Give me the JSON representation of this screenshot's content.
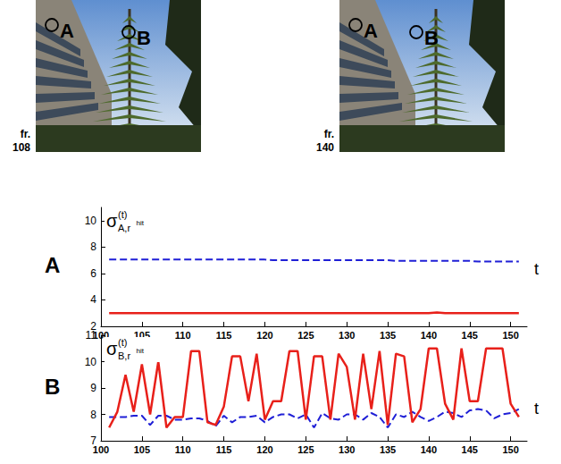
{
  "photos": [
    {
      "markers": [
        "A",
        "B"
      ],
      "caption": [
        "fr.",
        "108"
      ]
    },
    {
      "markers": [
        "A",
        "B"
      ],
      "caption": [
        "fr.",
        "140"
      ]
    }
  ],
  "chart_data": [
    {
      "type": "line",
      "panel": "A",
      "ylabel": {
        "base": "σ",
        "sup": "(t)",
        "sub": "A,r",
        "sub_sup": "hit"
      },
      "xlabel": "t",
      "x": [
        101,
        102,
        103,
        104,
        105,
        106,
        107,
        108,
        109,
        110,
        111,
        112,
        113,
        114,
        115,
        116,
        117,
        118,
        119,
        120,
        121,
        122,
        123,
        124,
        125,
        126,
        127,
        128,
        129,
        130,
        131,
        132,
        133,
        134,
        135,
        136,
        137,
        138,
        139,
        140,
        141,
        142,
        143,
        144,
        145,
        146,
        147,
        148,
        149,
        150,
        151
      ],
      "xlim": [
        100,
        152
      ],
      "xticks": [
        100,
        105,
        110,
        115,
        120,
        125,
        130,
        135,
        140,
        145,
        150
      ],
      "ylim": [
        2,
        11
      ],
      "yticks": [
        2,
        4,
        6,
        8,
        10
      ],
      "series": [
        {
          "color": "#1f1fd6",
          "line_style": "dashed",
          "values": [
            7.05,
            7.05,
            7.05,
            7.05,
            7.05,
            7.05,
            7.05,
            7.05,
            7.05,
            7.05,
            7.05,
            7.05,
            7.05,
            7.05,
            7.05,
            7.05,
            7.05,
            7.05,
            7.05,
            7.05,
            7.0,
            7.0,
            7.0,
            7.0,
            7.0,
            7.0,
            7.0,
            7.0,
            7.0,
            7.0,
            7.0,
            7.0,
            7.0,
            7.0,
            7.0,
            6.95,
            6.95,
            6.95,
            6.95,
            6.95,
            6.95,
            6.95,
            6.95,
            6.95,
            6.95,
            6.9,
            6.9,
            6.9,
            6.9,
            6.9,
            6.9
          ]
        },
        {
          "color": "#e8201a",
          "line_style": "solid",
          "values": [
            3.0,
            3.0,
            3.0,
            3.0,
            3.0,
            3.0,
            3.0,
            3.0,
            3.0,
            3.0,
            3.0,
            3.0,
            3.0,
            3.0,
            3.0,
            3.0,
            3.0,
            3.0,
            3.0,
            3.0,
            3.0,
            3.0,
            3.0,
            3.0,
            3.0,
            3.0,
            3.0,
            3.0,
            3.0,
            3.0,
            3.0,
            3.0,
            3.0,
            3.0,
            3.0,
            3.0,
            3.0,
            3.0,
            3.0,
            3.0,
            3.05,
            3.0,
            3.0,
            3.0,
            3.0,
            3.0,
            3.0,
            3.0,
            3.0,
            3.0,
            3.0
          ]
        }
      ]
    },
    {
      "type": "line",
      "panel": "B",
      "ylabel": {
        "base": "σ",
        "sup": "(t)",
        "sub": "B,r",
        "sub_sup": "hit"
      },
      "xlabel": "t",
      "x": [
        101,
        102,
        103,
        104,
        105,
        106,
        107,
        108,
        109,
        110,
        111,
        112,
        113,
        114,
        115,
        116,
        117,
        118,
        119,
        120,
        121,
        122,
        123,
        124,
        125,
        126,
        127,
        128,
        129,
        130,
        131,
        132,
        133,
        134,
        135,
        136,
        137,
        138,
        139,
        140,
        141,
        142,
        143,
        144,
        145,
        146,
        147,
        148,
        149,
        150,
        151
      ],
      "xlim": [
        100,
        152
      ],
      "xticks": [
        100,
        105,
        110,
        115,
        120,
        125,
        130,
        135,
        140,
        145,
        150
      ],
      "ylim": [
        7,
        11
      ],
      "yticks": [
        7,
        8,
        9,
        10,
        11
      ],
      "series": [
        {
          "color": "#1f1fd6",
          "line_style": "dashed",
          "values": [
            7.9,
            7.9,
            7.9,
            7.95,
            7.95,
            7.6,
            7.95,
            7.95,
            7.8,
            7.8,
            7.85,
            7.85,
            7.75,
            7.55,
            7.95,
            7.7,
            7.9,
            7.9,
            7.95,
            7.7,
            7.9,
            8.0,
            8.0,
            7.85,
            8.0,
            7.5,
            8.05,
            7.85,
            7.8,
            8.0,
            8.0,
            7.8,
            8.05,
            7.9,
            7.5,
            8.0,
            7.9,
            8.1,
            7.9,
            7.75,
            7.9,
            8.1,
            8.05,
            7.9,
            8.15,
            8.2,
            8.15,
            7.85,
            8.0,
            8.05,
            8.2
          ]
        },
        {
          "color": "#e8201a",
          "line_style": "solid",
          "values": [
            7.5,
            8.1,
            9.5,
            8.1,
            9.9,
            8.0,
            10.0,
            7.5,
            7.9,
            7.9,
            10.4,
            10.4,
            7.7,
            7.6,
            8.3,
            10.2,
            10.2,
            8.5,
            10.3,
            7.8,
            8.5,
            8.5,
            10.4,
            10.4,
            7.8,
            10.2,
            10.2,
            7.8,
            10.3,
            9.8,
            7.8,
            10.3,
            8.2,
            10.4,
            7.6,
            10.3,
            10.2,
            7.7,
            8.2,
            10.5,
            10.5,
            8.4,
            7.8,
            10.5,
            8.5,
            8.5,
            10.5,
            10.5,
            10.5,
            8.4,
            7.9
          ]
        }
      ]
    }
  ]
}
